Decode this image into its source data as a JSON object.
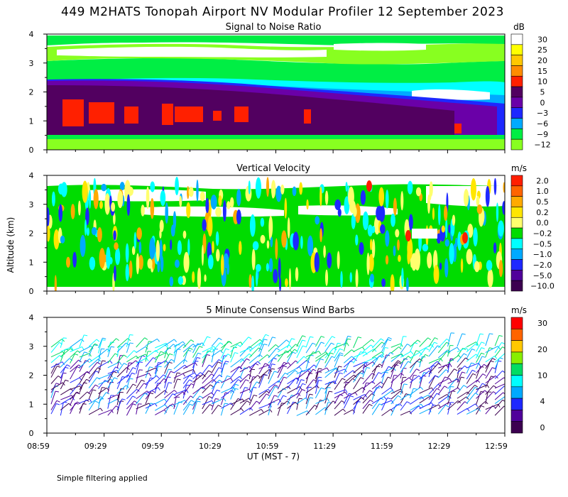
{
  "title": "449 M2HATS Tonopah Airport NV Modular Profiler 12 September 2023",
  "ylabel": "Altitude (km)",
  "xlabel": "UT  (MST - 7)",
  "footer": "Simple filtering applied",
  "x_ticks": [
    "08:59",
    "09:29",
    "09:59",
    "10:29",
    "10:59",
    "11:29",
    "11:59",
    "12:29",
    "12:59"
  ],
  "y_ticks": [
    "0",
    "1",
    "2",
    "3",
    "4"
  ],
  "colors": {
    "white": "#ffffff",
    "yellow": "#ffff00",
    "gold": "#ffc800",
    "orange": "#ff8c00",
    "red": "#ff2000",
    "darkpurple": "#520060",
    "purple": "#6a00a8",
    "blue": "#1e28ff",
    "lightblue": "#00aaff",
    "cyan": "#00ffff",
    "green": "#00ee44",
    "lime": "#88ff20"
  },
  "chart_data": [
    {
      "type": "heatmap",
      "title": "Signal to Noise Ratio",
      "unit": "dB",
      "x_range": [
        "08:59",
        "12:59"
      ],
      "ylim": [
        0,
        4
      ],
      "colorbar_labels": [
        "30",
        "25",
        "20",
        "15",
        "10",
        "5",
        "0",
        "−3",
        "−6",
        "−9",
        "−12"
      ],
      "colorbar_colors": [
        "#ffffff",
        "#ffff00",
        "#ffc800",
        "#ff8c00",
        "#ff2000",
        "#520060",
        "#6a00a8",
        "#1e28ff",
        "#00aaff",
        "#00ee44",
        "#88ff20"
      ]
    },
    {
      "type": "heatmap",
      "title": "Vertical Velocity",
      "unit": "m/s",
      "x_range": [
        "08:59",
        "12:59"
      ],
      "ylim": [
        0,
        4
      ],
      "colorbar_labels": [
        "2.0",
        "1.0",
        "0.5",
        "0.2",
        "0.0",
        "−0.2",
        "−0.5",
        "−1.0",
        "−2.0",
        "−5.0",
        "−10.0"
      ],
      "colorbar_colors": [
        "#ff1e00",
        "#ff6400",
        "#ffaa00",
        "#ffe600",
        "#ffff6e",
        "#00dc00",
        "#00ffff",
        "#00aaff",
        "#1e28ff",
        "#50009b",
        "#3c0050"
      ]
    },
    {
      "type": "scatter",
      "title": "5 Minute Consensus Wind Barbs",
      "unit": "m/s",
      "x_range": [
        "08:59",
        "12:59"
      ],
      "ylim": [
        0,
        4
      ],
      "colorbar_labels": [
        "30",
        "20",
        "10",
        "4",
        "0"
      ],
      "colorbar_colors": [
        "#ff0000",
        "#ff6400",
        "#ffc800",
        "#88ee00",
        "#00dc64",
        "#00ffff",
        "#00aaff",
        "#1e28ff",
        "#50009b",
        "#3c0050"
      ]
    }
  ]
}
